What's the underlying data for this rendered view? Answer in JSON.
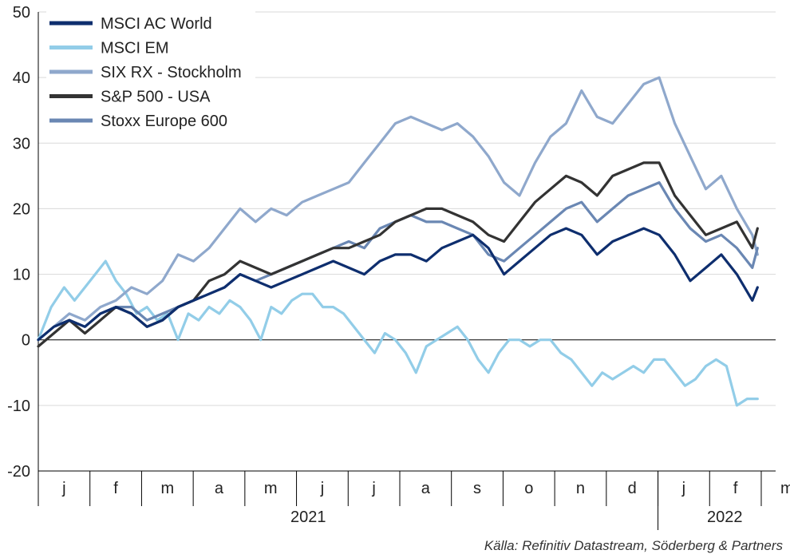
{
  "chart_data": {
    "type": "line",
    "ylim": [
      -20,
      50
    ],
    "yticks": [
      50,
      40,
      30,
      20,
      10,
      0,
      -10,
      -20
    ],
    "x_month_labels": [
      "j",
      "f",
      "m",
      "a",
      "m",
      "j",
      "j",
      "a",
      "s",
      "o",
      "n",
      "d",
      "j",
      "f",
      "m"
    ],
    "x_year_labels": [
      "2021",
      "2022"
    ],
    "xlim": [
      0,
      14.25
    ],
    "grid": true,
    "legend_position": "top-left",
    "source": "Källa: Refinitiv Datastream, Söderberg & Partners",
    "series": [
      {
        "name": "MSCI EM",
        "color": "#92cde8",
        "x": [
          0,
          0.25,
          0.5,
          0.7,
          0.9,
          1.1,
          1.3,
          1.5,
          1.7,
          1.9,
          2.1,
          2.3,
          2.5,
          2.7,
          2.9,
          3.1,
          3.3,
          3.5,
          3.7,
          3.9,
          4.1,
          4.3,
          4.5,
          4.7,
          4.9,
          5.1,
          5.3,
          5.5,
          5.7,
          5.9,
          6.1,
          6.3,
          6.5,
          6.7,
          6.9,
          7.1,
          7.3,
          7.5,
          7.7,
          7.9,
          8.1,
          8.3,
          8.5,
          8.7,
          8.9,
          9.1,
          9.3,
          9.5,
          9.7,
          9.9,
          10.1,
          10.3,
          10.5,
          10.7,
          10.9,
          11.1,
          11.3,
          11.5,
          11.7,
          11.9,
          12.1,
          12.3,
          12.5,
          12.7,
          12.9,
          13.1,
          13.3,
          13.5,
          13.7,
          13.9
        ],
        "values": [
          0,
          5,
          8,
          6,
          8,
          10,
          12,
          9,
          7,
          4,
          5,
          3,
          4,
          0,
          4,
          3,
          5,
          4,
          6,
          5,
          3,
          0,
          5,
          4,
          6,
          7,
          7,
          5,
          5,
          4,
          2,
          0,
          -2,
          1,
          0,
          -2,
          -5,
          -1,
          0,
          1,
          2,
          0,
          -3,
          -5,
          -2,
          0,
          0,
          -1,
          0,
          0,
          -2,
          -3,
          -5,
          -7,
          -5,
          -6,
          -5,
          -4,
          -5,
          -3,
          -3,
          -5,
          -7,
          -6,
          -4,
          -3,
          -4,
          -10,
          -9,
          -9
        ]
      },
      {
        "name": "SIX RX - Stockholm",
        "color": "#8fa8cc",
        "x": [
          0,
          0.3,
          0.6,
          0.9,
          1.2,
          1.5,
          1.8,
          2.1,
          2.4,
          2.7,
          3.0,
          3.3,
          3.6,
          3.9,
          4.2,
          4.5,
          4.8,
          5.1,
          5.4,
          5.7,
          6.0,
          6.3,
          6.6,
          6.9,
          7.2,
          7.5,
          7.8,
          8.1,
          8.4,
          8.7,
          9.0,
          9.3,
          9.6,
          9.9,
          10.2,
          10.5,
          10.8,
          11.1,
          11.4,
          11.7,
          12.0,
          12.3,
          12.6,
          12.9,
          13.2,
          13.5,
          13.8,
          13.9
        ],
        "values": [
          0,
          2,
          4,
          3,
          5,
          6,
          8,
          7,
          9,
          13,
          12,
          14,
          17,
          20,
          18,
          20,
          19,
          21,
          22,
          23,
          24,
          27,
          30,
          33,
          34,
          33,
          32,
          33,
          31,
          28,
          24,
          22,
          27,
          31,
          33,
          38,
          34,
          33,
          36,
          39,
          40,
          33,
          28,
          23,
          25,
          20,
          16,
          13
        ]
      },
      {
        "name": "Stoxx Europe 600",
        "color": "#6a87b3",
        "x": [
          0,
          0.3,
          0.6,
          0.9,
          1.2,
          1.5,
          1.8,
          2.1,
          2.4,
          2.7,
          3.0,
          3.3,
          3.6,
          3.9,
          4.2,
          4.5,
          4.8,
          5.1,
          5.4,
          5.7,
          6.0,
          6.3,
          6.6,
          6.9,
          7.2,
          7.5,
          7.8,
          8.1,
          8.4,
          8.7,
          9.0,
          9.3,
          9.6,
          9.9,
          10.2,
          10.5,
          10.8,
          11.1,
          11.4,
          11.7,
          12.0,
          12.3,
          12.6,
          12.9,
          13.2,
          13.5,
          13.8,
          13.9
        ],
        "values": [
          0,
          2,
          3,
          2,
          4,
          5,
          5,
          3,
          4,
          5,
          6,
          7,
          8,
          10,
          9,
          10,
          11,
          12,
          13,
          14,
          15,
          14,
          17,
          18,
          19,
          18,
          18,
          17,
          16,
          13,
          12,
          14,
          16,
          18,
          20,
          21,
          18,
          20,
          22,
          23,
          24,
          20,
          17,
          15,
          16,
          14,
          11,
          14
        ]
      },
      {
        "name": "S&P 500 - USA",
        "color": "#333333",
        "x": [
          0,
          0.3,
          0.6,
          0.9,
          1.2,
          1.5,
          1.8,
          2.1,
          2.4,
          2.7,
          3.0,
          3.3,
          3.6,
          3.9,
          4.2,
          4.5,
          4.8,
          5.1,
          5.4,
          5.7,
          6.0,
          6.3,
          6.6,
          6.9,
          7.2,
          7.5,
          7.8,
          8.1,
          8.4,
          8.7,
          9.0,
          9.3,
          9.6,
          9.9,
          10.2,
          10.5,
          10.8,
          11.1,
          11.4,
          11.7,
          12.0,
          12.3,
          12.6,
          12.9,
          13.2,
          13.5,
          13.8,
          13.9
        ],
        "values": [
          -1,
          1,
          3,
          1,
          3,
          5,
          4,
          2,
          3,
          5,
          6,
          9,
          10,
          12,
          11,
          10,
          11,
          12,
          13,
          14,
          14,
          15,
          16,
          18,
          19,
          20,
          20,
          19,
          18,
          16,
          15,
          18,
          21,
          23,
          25,
          24,
          22,
          25,
          26,
          27,
          27,
          22,
          19,
          16,
          17,
          18,
          14,
          17
        ]
      },
      {
        "name": "MSCI AC World",
        "color": "#0e2e6e",
        "x": [
          0,
          0.3,
          0.6,
          0.9,
          1.2,
          1.5,
          1.8,
          2.1,
          2.4,
          2.7,
          3.0,
          3.3,
          3.6,
          3.9,
          4.2,
          4.5,
          4.8,
          5.1,
          5.4,
          5.7,
          6.0,
          6.3,
          6.6,
          6.9,
          7.2,
          7.5,
          7.8,
          8.1,
          8.4,
          8.7,
          9.0,
          9.3,
          9.6,
          9.9,
          10.2,
          10.5,
          10.8,
          11.1,
          11.4,
          11.7,
          12.0,
          12.3,
          12.6,
          12.9,
          13.2,
          13.5,
          13.8,
          13.9
        ],
        "values": [
          0,
          2,
          3,
          2,
          4,
          5,
          4,
          2,
          3,
          5,
          6,
          7,
          8,
          10,
          9,
          8,
          9,
          10,
          11,
          12,
          11,
          10,
          12,
          13,
          13,
          12,
          14,
          15,
          16,
          14,
          10,
          12,
          14,
          16,
          17,
          16,
          13,
          15,
          16,
          17,
          16,
          13,
          9,
          11,
          13,
          10,
          6,
          8
        ]
      }
    ]
  }
}
